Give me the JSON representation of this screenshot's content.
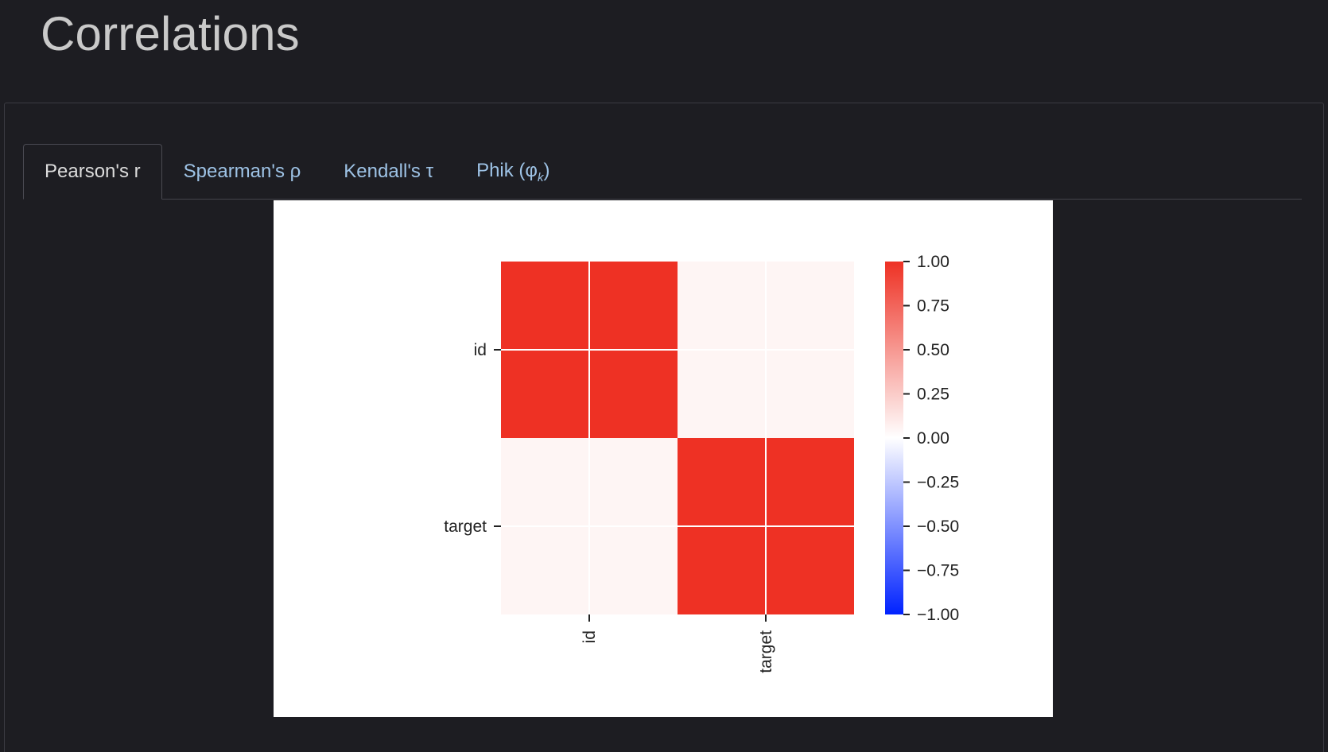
{
  "page": {
    "title": "Correlations"
  },
  "tabs": [
    {
      "label": "Pearson's r",
      "active": true
    },
    {
      "label": "Spearman's ρ",
      "active": false
    },
    {
      "label": "Kendall's τ",
      "active": false
    },
    {
      "label_prefix": "Phik (φ",
      "label_sub": "k",
      "label_suffix": ")",
      "active": false
    }
  ],
  "chart_data": {
    "type": "heatmap",
    "title": "",
    "xlabel": "",
    "ylabel": "",
    "x_categories": [
      "id",
      "target"
    ],
    "y_categories": [
      "id",
      "target"
    ],
    "values": [
      [
        1.0,
        0.05
      ],
      [
        0.05,
        1.0
      ]
    ],
    "colorbar": {
      "min": -1.0,
      "max": 1.0,
      "ticks": [
        "1.00",
        "0.75",
        "0.50",
        "0.25",
        "0.00",
        "−0.25",
        "−0.50",
        "−0.75",
        "−1.00"
      ],
      "low_color": "#0022ff",
      "mid_color": "#ffffff",
      "high_color": "#ee3124"
    },
    "grid": true
  }
}
